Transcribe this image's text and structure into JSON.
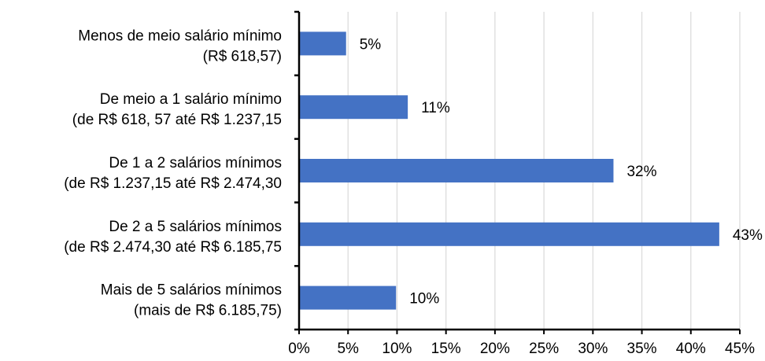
{
  "chart_data": {
    "type": "bar",
    "orientation": "horizontal",
    "categories": [
      [
        "Menos de meio salário mínimo",
        "(R$ 618,57)"
      ],
      [
        "De meio a 1 salário mínimo",
        "(de R$ 618, 57 até R$ 1.237,15"
      ],
      [
        "De 1 a 2 salários mínimos",
        "(de R$ 1.237,15 até R$ 2.474,30"
      ],
      [
        "De 2 a 5 salários mínimos",
        "(de R$ 2.474,30 até R$ 6.185,75"
      ],
      [
        "Mais de 5 salários mínimos",
        "(mais de R$ 6.185,75)"
      ]
    ],
    "values": [
      4.8,
      11.1,
      32.1,
      42.9,
      9.9
    ],
    "data_labels": [
      "5%",
      "11%",
      "32%",
      "43%",
      "10%"
    ],
    "xlim": [
      0,
      45
    ],
    "x_ticks": [
      "0%",
      "5%",
      "10%",
      "15%",
      "20%",
      "25%",
      "30%",
      "35%",
      "40%",
      "45%"
    ],
    "grid": "vertical",
    "legend": "none",
    "bar_color": "#4472C4",
    "grid_color": "#D9D9D9",
    "axis_color": "#000000"
  }
}
